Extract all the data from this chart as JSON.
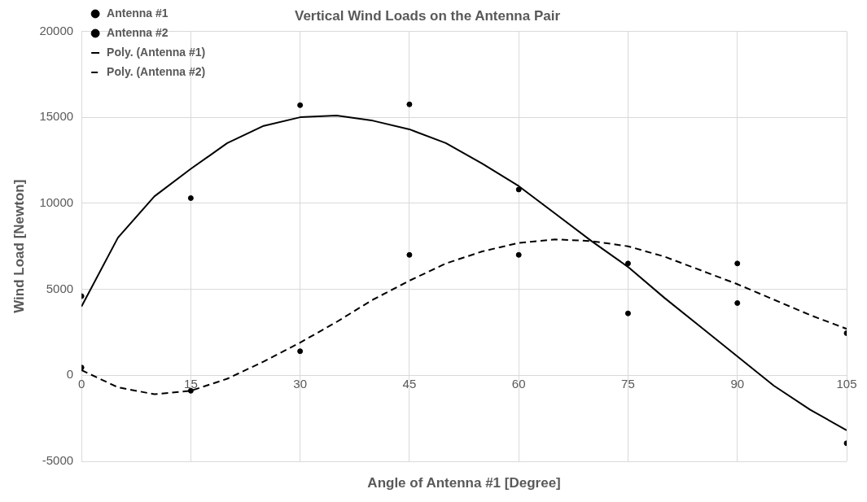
{
  "chart_data": {
    "type": "scatter",
    "title": "Vertical Wind Loads on the Antenna Pair",
    "xlabel": "Angle of Antenna #1 [Degree]",
    "ylabel": "Wind Load [Newton]",
    "xlim": [
      0,
      105
    ],
    "xticks": [
      0,
      15,
      30,
      45,
      60,
      75,
      90,
      105
    ],
    "ylim": [
      -5000,
      20000
    ],
    "yticks": [
      -5000,
      0,
      5000,
      10000,
      15000,
      20000
    ],
    "grid": true,
    "legend": "top left",
    "series": [
      {
        "name": "Antenna #1",
        "marker": "circle",
        "color": "#000000",
        "x": [
          0,
          15,
          30,
          45,
          60,
          75,
          90,
          105
        ],
        "values": [
          4600,
          10300,
          15700,
          15750,
          10800,
          3600,
          4200,
          -3950
        ]
      },
      {
        "name": "Antenna #2",
        "marker": "circle",
        "color": "#000000",
        "x": [
          0,
          15,
          30,
          45,
          60,
          75,
          90,
          105
        ],
        "values": [
          450,
          -900,
          1400,
          7000,
          7000,
          6500,
          6500,
          2450
        ]
      },
      {
        "name": "Poly. (Antenna #1)",
        "type": "line",
        "marker": "none",
        "line_style": "solid",
        "color": "#000000",
        "x": [
          0,
          5,
          10,
          15,
          20,
          25,
          30,
          35,
          40,
          45,
          50,
          55,
          60,
          65,
          70,
          75,
          80,
          85,
          90,
          95,
          100,
          105
        ],
        "values": [
          4000,
          8000,
          10400,
          12000,
          13500,
          14500,
          15000,
          15100,
          14800,
          14300,
          13500,
          12300,
          11000,
          9400,
          7800,
          6300,
          4500,
          2800,
          1100,
          -600,
          -2000,
          -3200
        ]
      },
      {
        "name": "Poly. (Antenna #2)",
        "type": "line",
        "marker": "none",
        "line_style": "dashed",
        "color": "#000000",
        "x": [
          0,
          5,
          10,
          15,
          20,
          25,
          30,
          35,
          40,
          45,
          50,
          55,
          60,
          65,
          70,
          75,
          80,
          85,
          90,
          95,
          100,
          105
        ],
        "values": [
          300,
          -700,
          -1100,
          -900,
          -200,
          800,
          1900,
          3100,
          4400,
          5500,
          6500,
          7200,
          7700,
          7900,
          7800,
          7500,
          6900,
          6100,
          5300,
          4400,
          3500,
          2700
        ]
      }
    ]
  }
}
